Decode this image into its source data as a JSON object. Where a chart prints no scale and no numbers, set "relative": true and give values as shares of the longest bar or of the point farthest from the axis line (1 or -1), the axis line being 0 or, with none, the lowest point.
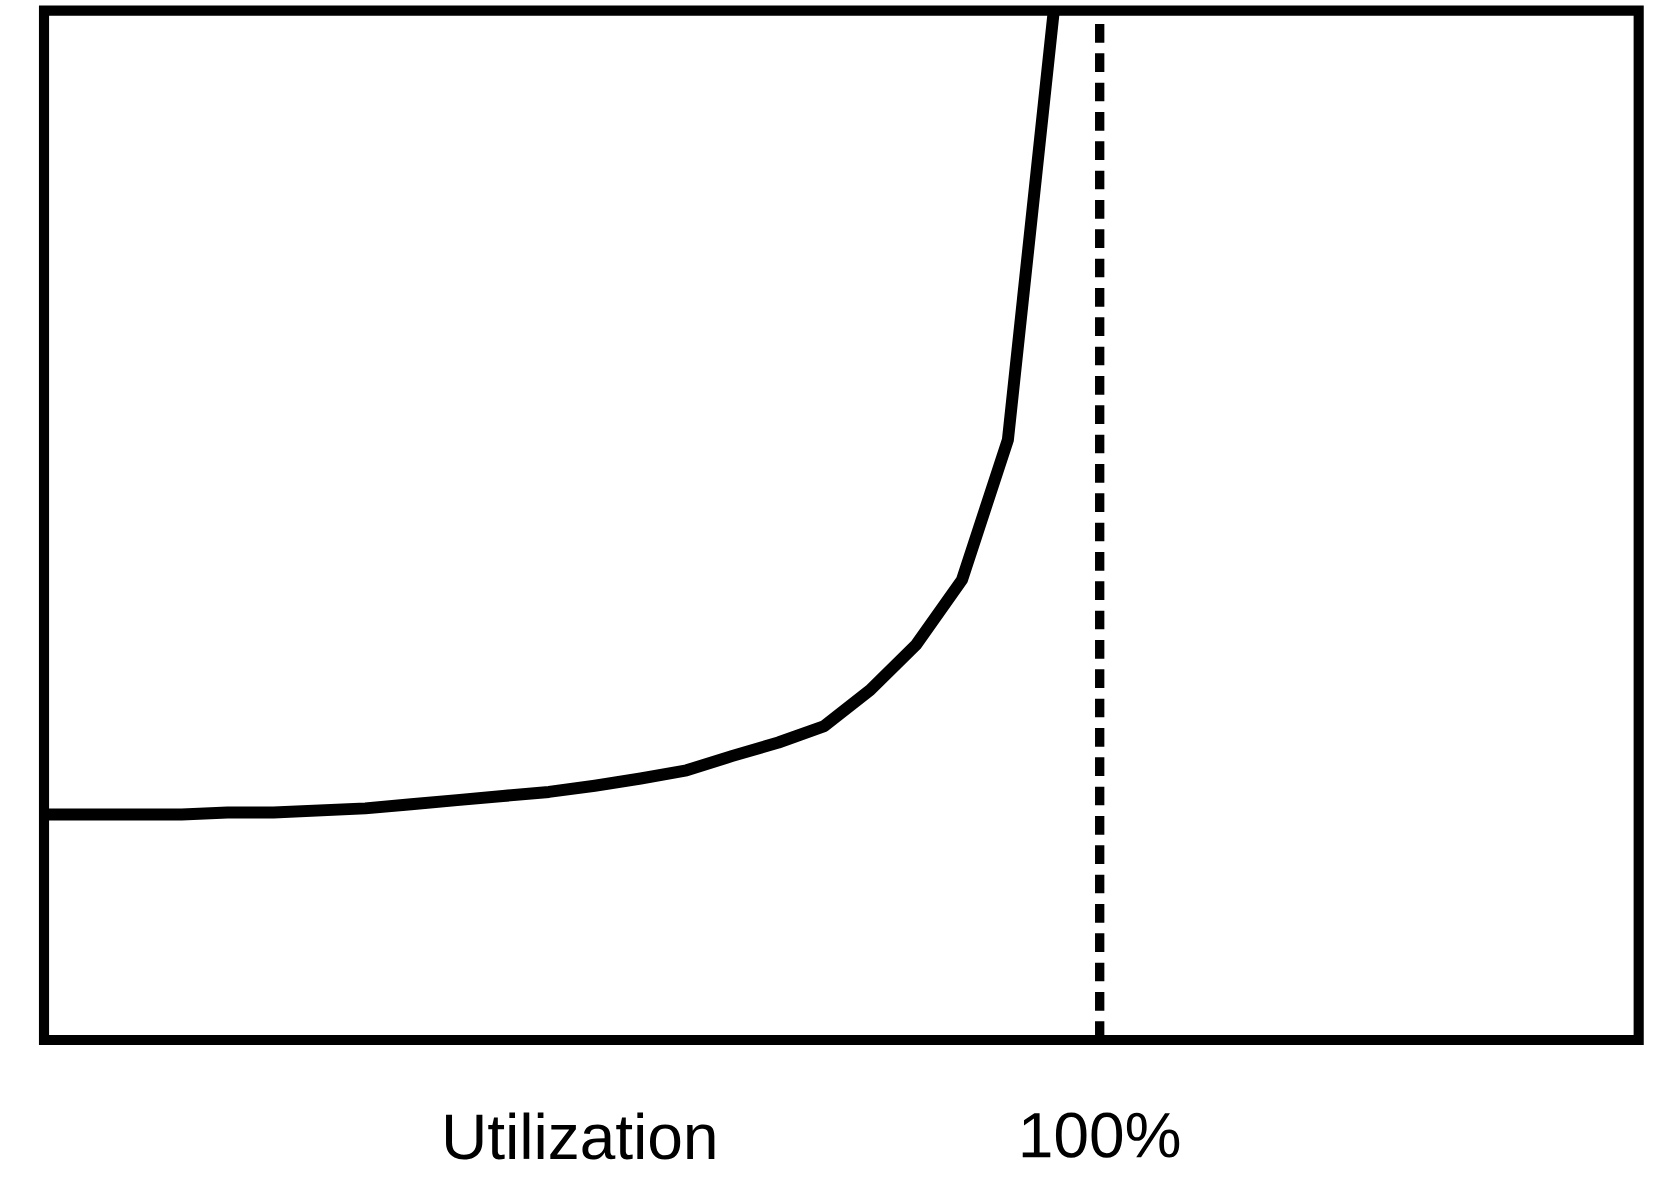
{
  "chart_data": {
    "type": "line",
    "relative": true,
    "xlabel": "Utilization",
    "categories": [
      null,
      null,
      null,
      null,
      null,
      null,
      null,
      null,
      null,
      null,
      null,
      null,
      null,
      null,
      null,
      null,
      null,
      null,
      null,
      null,
      null,
      null,
      null,
      null
    ],
    "values": [
      0.219,
      0.219,
      0.219,
      0.219,
      0.221,
      0.221,
      0.223,
      0.225,
      0.229,
      0.233,
      0.237,
      0.241,
      0.247,
      0.254,
      0.262,
      0.276,
      0.289,
      0.305,
      0.34,
      0.384,
      0.447,
      0.583,
      1.0,
      null
    ],
    "color": "#000000",
    "line_style": "solid",
    "annotations": [
      "100%"
    ],
    "marker": "none"
  }
}
